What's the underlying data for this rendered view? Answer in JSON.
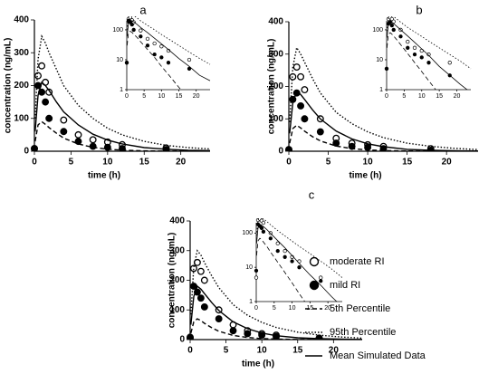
{
  "chart_data": [
    {
      "type": "line",
      "label": "a",
      "xlabel": "time (h)",
      "ylabel": "concentration (ng/mL)",
      "xlim": [
        0,
        24
      ],
      "xticks": [
        0,
        5,
        10,
        15,
        20
      ],
      "ylim": [
        0,
        400
      ],
      "yticks": [
        0,
        100,
        200,
        300,
        400
      ],
      "inset": {
        "yscale": "log",
        "xlim": [
          0,
          24
        ],
        "xticks": [
          0,
          5,
          10,
          15,
          20
        ],
        "ylim": [
          1,
          200
        ],
        "yticks": [
          1,
          10,
          100
        ]
      },
      "series": [
        {
          "marker": "open",
          "color": "#000",
          "x": [
            0,
            0.5,
            1,
            1.5,
            2,
            4,
            6,
            8,
            10,
            12,
            18
          ],
          "values": [
            8,
            230,
            260,
            210,
            180,
            95,
            50,
            35,
            28,
            20,
            10
          ]
        },
        {
          "marker": "filled",
          "color": "#000",
          "x": [
            0,
            0.5,
            1,
            1.5,
            2,
            4,
            6,
            8,
            10,
            12,
            18
          ],
          "values": [
            8,
            200,
            180,
            150,
            100,
            60,
            30,
            15,
            12,
            8,
            5
          ]
        },
        {
          "dash": "dashed",
          "color": "#000",
          "x": [
            0.1,
            0.5,
            1,
            1.5,
            2,
            3,
            4,
            6,
            8,
            10,
            12,
            15,
            18,
            21,
            24
          ],
          "values": [
            30,
            80,
            90,
            82,
            72,
            55,
            40,
            22,
            12,
            6,
            3.2,
            1.2,
            0.5,
            0.2,
            0.1
          ]
        },
        {
          "dash": "dotted",
          "color": "#000",
          "x": [
            0.1,
            0.5,
            1,
            1.5,
            2,
            3,
            4,
            6,
            8,
            10,
            12,
            15,
            18,
            21,
            24
          ],
          "values": [
            100,
            280,
            350,
            330,
            300,
            250,
            200,
            140,
            100,
            70,
            50,
            30,
            18,
            11,
            7
          ]
        },
        {
          "dash": "solid",
          "color": "#000",
          "x": [
            0.1,
            0.5,
            1,
            1.5,
            2,
            3,
            4,
            6,
            8,
            10,
            12,
            15,
            18,
            21,
            24
          ],
          "values": [
            60,
            170,
            210,
            200,
            185,
            150,
            120,
            80,
            52,
            34,
            22,
            11,
            6,
            3,
            2
          ]
        }
      ]
    },
    {
      "type": "line",
      "label": "b",
      "xlabel": "time (h)",
      "ylabel": "concentration (ng/mL)",
      "xlim": [
        0,
        24
      ],
      "xticks": [
        0,
        5,
        10,
        15,
        20
      ],
      "ylim": [
        0,
        400
      ],
      "yticks": [
        0,
        100,
        200,
        300,
        400
      ],
      "inset": {
        "yscale": "log",
        "xlim": [
          0,
          24
        ],
        "xticks": [
          0,
          5,
          10,
          15,
          20
        ],
        "ylim": [
          1,
          200
        ],
        "yticks": [
          1,
          10,
          100
        ]
      },
      "series": [
        {
          "marker": "open",
          "color": "#000",
          "x": [
            0,
            0.5,
            1,
            1.5,
            2,
            4,
            6,
            8,
            10,
            12,
            18
          ],
          "values": [
            5,
            230,
            260,
            230,
            190,
            100,
            40,
            25,
            20,
            15,
            8
          ]
        },
        {
          "marker": "filled",
          "color": "#000",
          "x": [
            0,
            0.5,
            1,
            1.5,
            2,
            4,
            6,
            8,
            10,
            12,
            18
          ],
          "values": [
            5,
            160,
            180,
            140,
            100,
            60,
            25,
            15,
            12,
            8,
            3
          ]
        },
        {
          "dash": "dashed",
          "color": "#000",
          "x": [
            0.1,
            0.5,
            1,
            1.5,
            2,
            3,
            4,
            6,
            8,
            10,
            12,
            15,
            18,
            21,
            24
          ],
          "values": [
            25,
            70,
            80,
            72,
            62,
            45,
            32,
            16,
            8,
            4,
            2,
            0.7,
            0.3,
            0.1,
            0.05
          ]
        },
        {
          "dash": "dotted",
          "color": "#000",
          "x": [
            0.1,
            0.5,
            1,
            1.5,
            2,
            3,
            4,
            6,
            8,
            10,
            12,
            15,
            18,
            21,
            24
          ],
          "values": [
            90,
            260,
            320,
            300,
            275,
            225,
            180,
            120,
            85,
            60,
            42,
            25,
            15,
            9,
            5
          ]
        },
        {
          "dash": "solid",
          "color": "#000",
          "x": [
            0.1,
            0.5,
            1,
            1.5,
            2,
            3,
            4,
            6,
            8,
            10,
            12,
            15,
            18,
            21,
            24
          ],
          "values": [
            55,
            150,
            185,
            175,
            160,
            128,
            100,
            62,
            38,
            23,
            14,
            6,
            3,
            1.5,
            0.8
          ]
        }
      ]
    },
    {
      "type": "line",
      "label": "c",
      "xlabel": "time (h)",
      "ylabel": "concentration (ng/mL)",
      "xlim": [
        0,
        24
      ],
      "xticks": [
        0,
        5,
        10,
        15,
        20
      ],
      "ylim": [
        0,
        400
      ],
      "yticks": [
        0,
        100,
        200,
        300,
        400
      ],
      "inset": {
        "yscale": "log",
        "xlim": [
          0,
          24
        ],
        "xticks": [
          0,
          5,
          10,
          15,
          20
        ],
        "ylim": [
          1,
          200
        ],
        "yticks": [
          1,
          10,
          100
        ]
      },
      "series": [
        {
          "name": "moderate RI",
          "marker": "open",
          "color": "#000",
          "x": [
            0,
            0.5,
            1,
            1.5,
            2,
            4,
            6,
            8,
            10,
            12,
            18
          ],
          "values": [
            5,
            240,
            260,
            230,
            200,
            100,
            50,
            30,
            20,
            15,
            5
          ]
        },
        {
          "name": "mild RI",
          "marker": "filled",
          "color": "#000",
          "x": [
            0,
            0.5,
            1,
            1.5,
            2,
            4,
            6,
            8,
            10,
            12,
            18
          ],
          "values": [
            8,
            180,
            160,
            140,
            110,
            70,
            30,
            20,
            15,
            10,
            4
          ]
        },
        {
          "name": "5th Percentile",
          "dash": "dashed",
          "color": "#000",
          "x": [
            0.1,
            0.5,
            1,
            1.5,
            2,
            3,
            4,
            6,
            8,
            10,
            12,
            15,
            18,
            21,
            24
          ],
          "values": [
            22,
            60,
            70,
            64,
            55,
            40,
            28,
            14,
            7,
            3.5,
            1.7,
            0.6,
            0.2,
            0.1,
            0.05
          ]
        },
        {
          "name": "95th Percentile",
          "dash": "dotted",
          "color": "#000",
          "x": [
            0.1,
            0.5,
            1,
            1.5,
            2,
            3,
            4,
            6,
            8,
            10,
            12,
            15,
            18,
            21,
            24
          ],
          "values": [
            85,
            245,
            300,
            285,
            260,
            215,
            175,
            118,
            82,
            58,
            41,
            25,
            15,
            9,
            5
          ]
        },
        {
          "name": "Mean Simulated Data",
          "dash": "solid",
          "color": "#000",
          "x": [
            0.1,
            0.5,
            1,
            1.5,
            2,
            3,
            4,
            6,
            8,
            10,
            12,
            15,
            18,
            21,
            24
          ],
          "values": [
            50,
            145,
            180,
            170,
            155,
            125,
            98,
            60,
            37,
            22,
            13,
            6,
            3,
            1.4,
            0.7
          ]
        }
      ]
    }
  ]
}
